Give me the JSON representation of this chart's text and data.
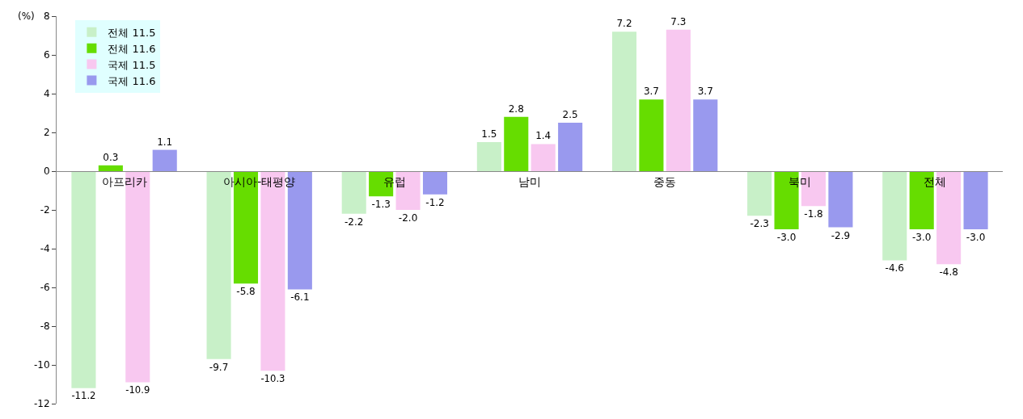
{
  "chart_data": {
    "type": "bar",
    "ylabel": "(%)",
    "categories": [
      "아프리카",
      "아시아-태평양",
      "유럽",
      "남미",
      "중동",
      "북미",
      "전체"
    ],
    "series": [
      {
        "name": "전체 11.5",
        "color": "#c8f0c8",
        "values": [
          -11.2,
          -9.7,
          -2.2,
          1.5,
          7.2,
          -2.3,
          -4.6
        ]
      },
      {
        "name": "전체 11.6",
        "color": "#66dd00",
        "values": [
          0.3,
          -5.8,
          -1.3,
          2.8,
          3.7,
          -3.0,
          -3.0
        ],
        "value_labels": [
          "0.3",
          "-5.8",
          "-1.3",
          "2.8",
          "3.7",
          "-3.0",
          "-3.0"
        ]
      },
      {
        "name": "국제 11.5",
        "color": "#f8c8f0",
        "values": [
          -10.9,
          -10.3,
          -2.0,
          1.4,
          7.3,
          -1.8,
          -4.8
        ],
        "value_labels": [
          "-10.9",
          "-10.3",
          "-2.0",
          "1.4",
          "7.3",
          "-1.8",
          "-4.8"
        ]
      },
      {
        "name": "국제 11.6",
        "color": "#9999ee",
        "values": [
          1.1,
          -6.1,
          -1.2,
          2.5,
          3.7,
          -2.9,
          -3.0
        ],
        "value_labels": [
          "1.1",
          "-6.1",
          "-1.2",
          "2.5",
          "3.7",
          "-2.9",
          "-3.0"
        ]
      }
    ],
    "ylim": [
      -12,
      8
    ],
    "yticks": [
      -12,
      -10,
      -8,
      -6,
      -4,
      -2,
      0,
      2,
      4,
      6,
      8
    ],
    "data_labels": true,
    "legend": "top left"
  }
}
